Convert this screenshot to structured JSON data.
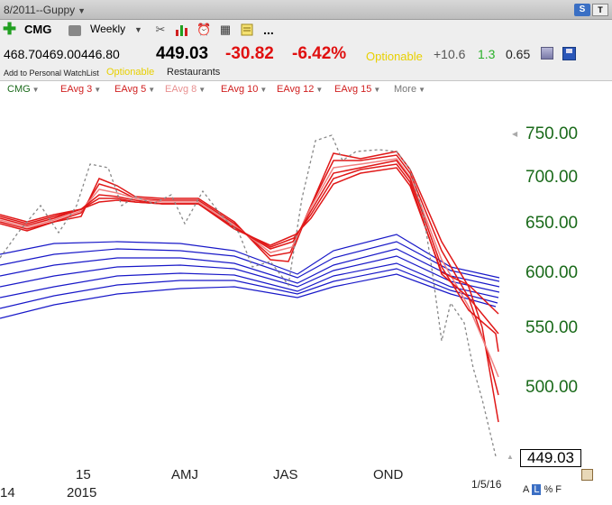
{
  "window": {
    "title": "8/2011--Guppy"
  },
  "toolbar": {
    "symbol": "CMG",
    "period": "Weekly",
    "more": "..."
  },
  "quote": {
    "open": "468.70",
    "high": "469.00",
    "low": "446.80",
    "last": "449.03",
    "change": "-30.82",
    "change_pct": "-6.42%",
    "optionable": "Optionable",
    "plus_value": "+10.6",
    "green_value": "1.3",
    "volume_value": "0.65",
    "watchlist_link": "Add to Personal WatchList",
    "optionable_small": "Optionable",
    "industry": "Restaurants"
  },
  "indicators": [
    {
      "label": "CMG",
      "color": "#1a6a1a"
    },
    {
      "label": "EAvg 3",
      "color": "#d02020"
    },
    {
      "label": "EAvg 5",
      "color": "#d02020"
    },
    {
      "label": "EAvg 8",
      "color": "#e89090"
    },
    {
      "label": "EAvg 10",
      "color": "#d02020"
    },
    {
      "label": "EAvg 12",
      "color": "#d02020"
    },
    {
      "label": "EAvg 15",
      "color": "#d02020"
    },
    {
      "label": "More",
      "color": "#777777"
    }
  ],
  "chart": {
    "y_ticks": [
      "750.00",
      "700.00",
      "650.00",
      "600.00",
      "550.00",
      "500.00"
    ],
    "x_ticks_top": [
      "15",
      "AMJ",
      "JAS",
      "OND"
    ],
    "x_ticks_bottom": [
      "14",
      "2015"
    ],
    "current_price": "449.03",
    "last_date": "1/5/16",
    "scale_buttons": [
      "A",
      "L",
      "%",
      "F"
    ],
    "active_scale": "L",
    "colors": {
      "price_line": "#888888",
      "short_ema": "#e01818",
      "mid_ema": "#f08080",
      "long_ema": "#1818c8",
      "y_axis_text": "#1a6a1a"
    }
  }
}
